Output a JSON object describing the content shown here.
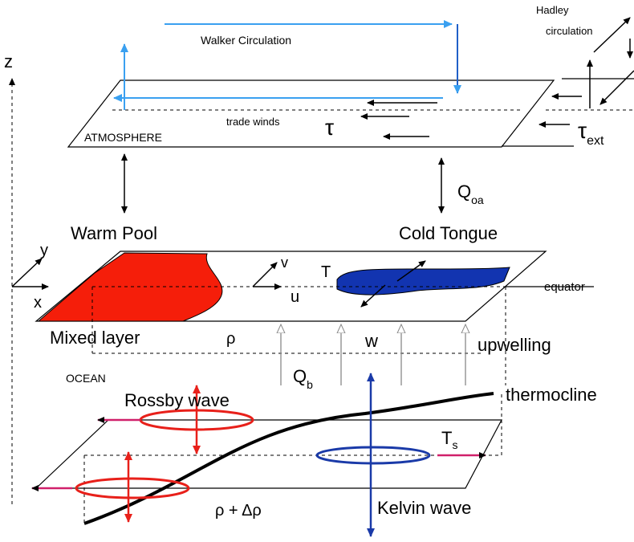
{
  "labels": {
    "walker": "Walker Circulation",
    "hadley": [
      "Hadley",
      "circulation"
    ],
    "z": "z",
    "trade_winds": "trade winds",
    "tau": "τ",
    "atmosphere": "ATMOSPHERE",
    "tau_ext": {
      "symbol": "τ",
      "subscript": "ext"
    },
    "q_oa": {
      "symbol": "Q",
      "subscript": "oa"
    },
    "warm_pool": "Warm Pool",
    "cold_tongue": "Cold Tongue",
    "y": "y",
    "x": "x",
    "v": "v",
    "T": "T",
    "u": "u",
    "equator": "equator",
    "mixed_layer": "Mixed layer",
    "rho": "ρ",
    "w": "w",
    "upwelling": "upwelling",
    "ocean": "OCEAN",
    "q_b": {
      "symbol": "Q",
      "subscript": "b"
    },
    "rossby": "Rossby wave",
    "thermocline": "thermocline",
    "t_s": {
      "symbol": "T",
      "subscript": "s"
    },
    "kelvin": "Kelvin wave",
    "rho_drho": "ρ + Δρ"
  }
}
